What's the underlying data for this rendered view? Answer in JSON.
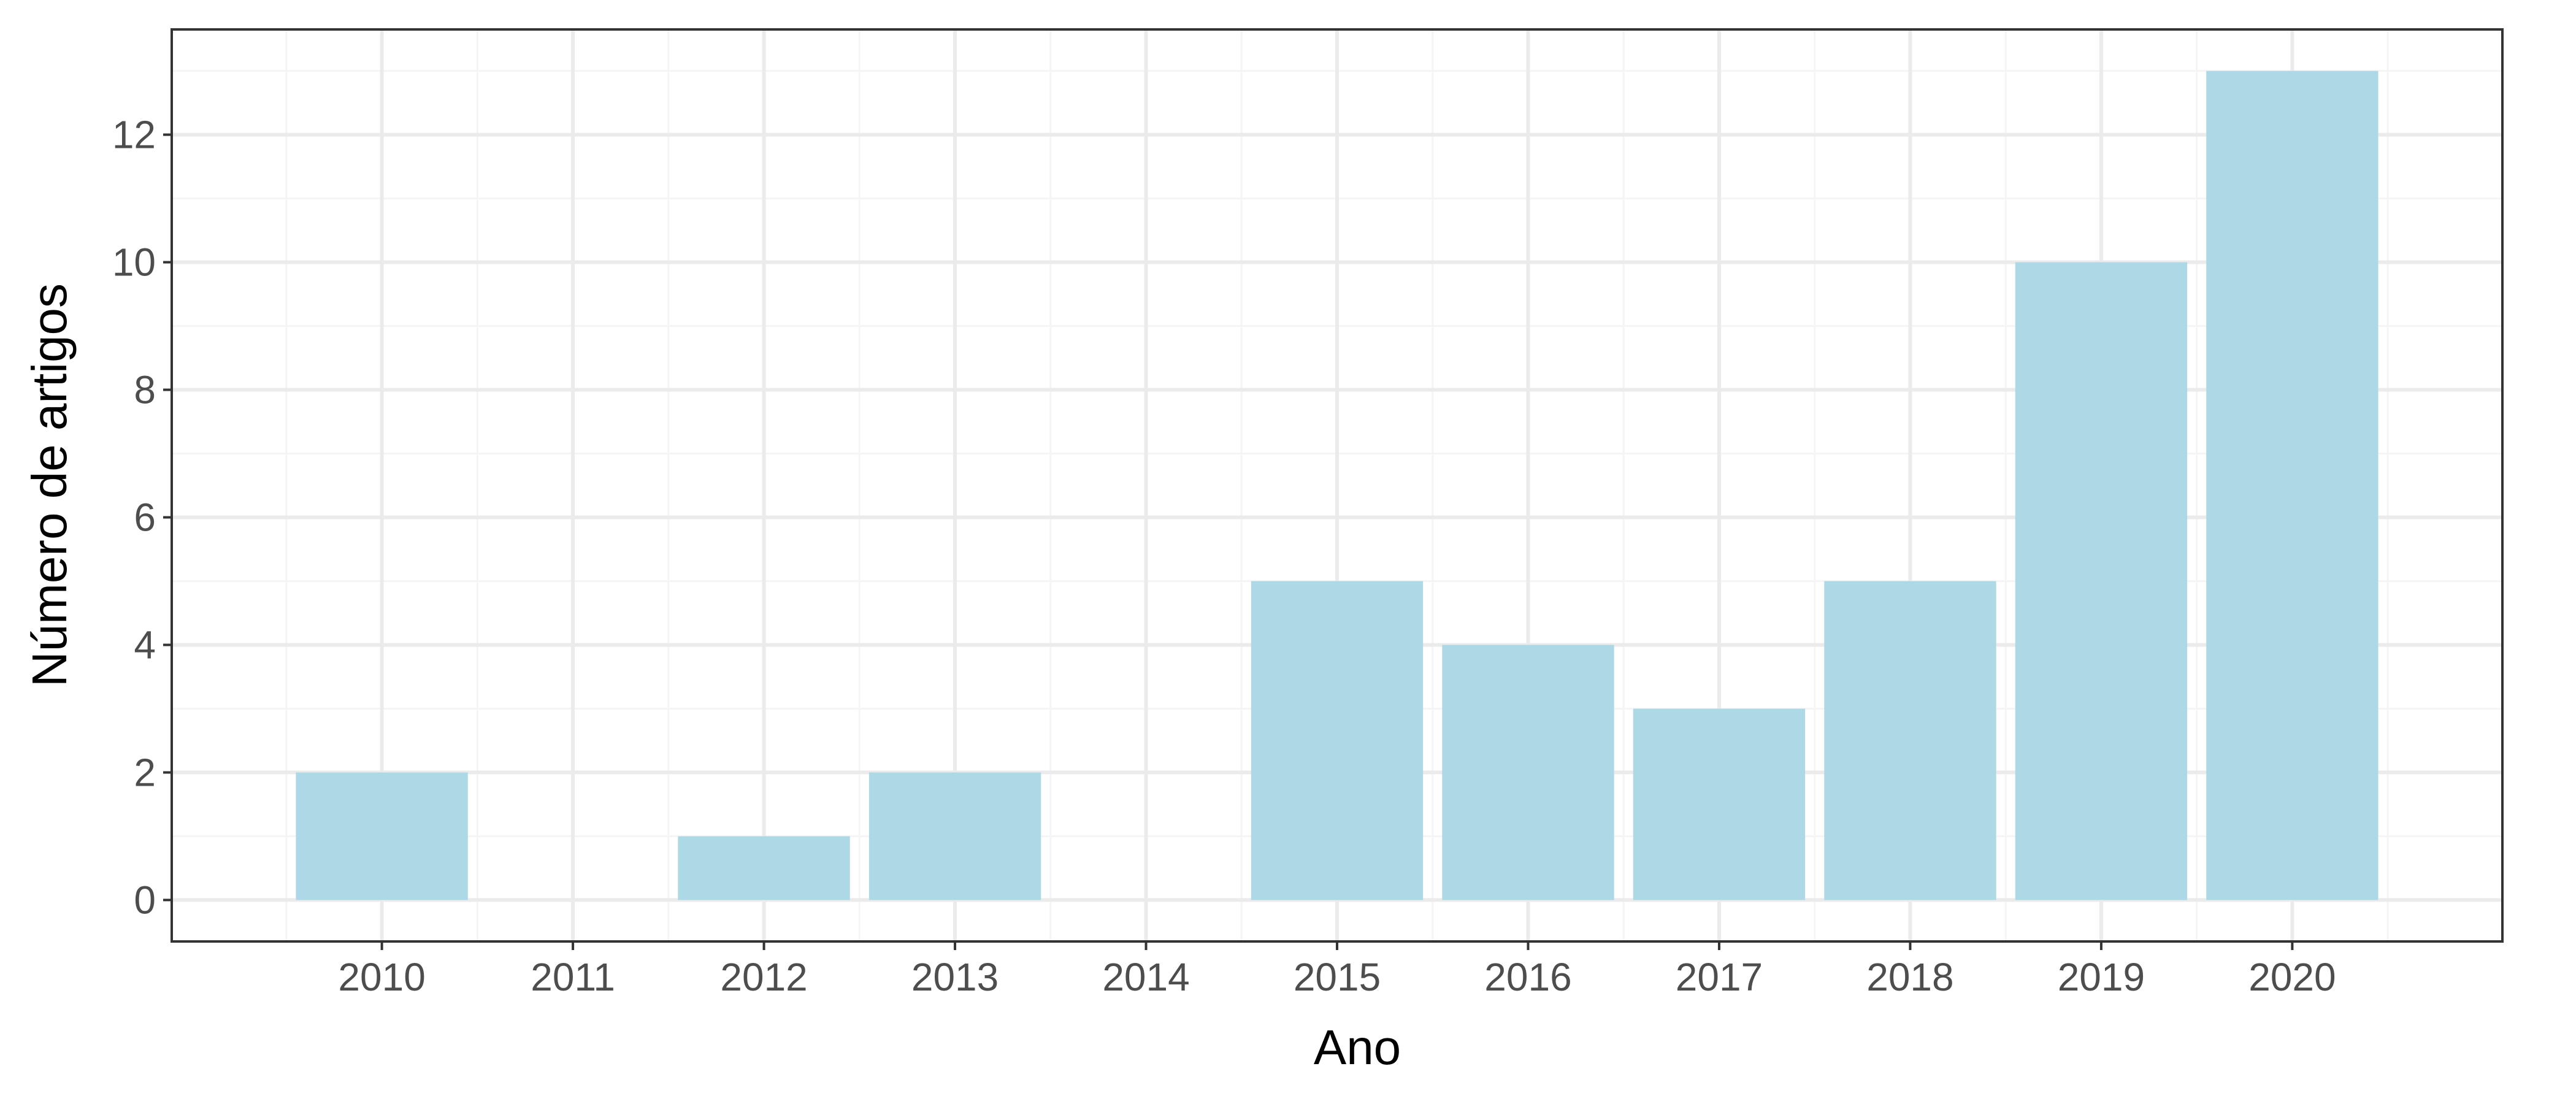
{
  "chart_data": {
    "type": "bar",
    "categories": [
      "2010",
      "2011",
      "2012",
      "2013",
      "2014",
      "2015",
      "2016",
      "2017",
      "2018",
      "2019",
      "2020"
    ],
    "values": [
      2,
      0,
      1,
      2,
      0,
      5,
      4,
      3,
      5,
      10,
      13
    ],
    "xlabel": "Ano",
    "ylabel": "Número de artigos",
    "ylim": [
      -0.65,
      13.65
    ],
    "yticks": [
      0,
      2,
      4,
      6,
      8,
      10,
      12
    ],
    "grid": true,
    "legend": "none",
    "colors": {
      "bar": "#add8e6",
      "grid_major": "#ebebeb",
      "grid_minor": "#f5f5f5",
      "panel_border": "#333333",
      "tick_label": "#4d4d4d",
      "axis_title": "#000000"
    }
  }
}
